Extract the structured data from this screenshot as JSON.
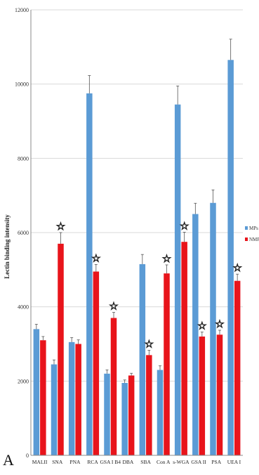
{
  "chart_data": {
    "type": "bar",
    "title": "",
    "xlabel": "",
    "ylabel": "Lectin binding intensity",
    "ylim": [
      0,
      12000
    ],
    "yticks": [
      0,
      2000,
      4000,
      6000,
      8000,
      10000,
      12000
    ],
    "grid": true,
    "legend": "right",
    "panel_label": "A",
    "categories": [
      "MALII",
      "SNA",
      "PNA",
      "RCA",
      "GSA I B4",
      "DBA",
      "SBA",
      "Con A",
      "s-WGA",
      "GSA II",
      "PSA",
      "UEA I"
    ],
    "series": [
      {
        "name": "MPs",
        "color": "#5b9bd5",
        "values": [
          3400,
          2450,
          3050,
          9750,
          2200,
          1950,
          5150,
          2300,
          9450,
          6500,
          6800,
          10650
        ],
        "errors": [
          130,
          120,
          120,
          480,
          100,
          80,
          260,
          110,
          500,
          290,
          350,
          560
        ]
      },
      {
        "name": "NMF",
        "color": "#e8141b",
        "values": [
          3100,
          5700,
          3000,
          4950,
          3700,
          2150,
          2700,
          4900,
          5750,
          3200,
          3250,
          4700
        ],
        "errors": [
          100,
          300,
          110,
          190,
          150,
          60,
          130,
          230,
          260,
          120,
          120,
          180
        ]
      }
    ],
    "significant": [
      false,
      true,
      false,
      true,
      true,
      false,
      true,
      true,
      true,
      true,
      true,
      true
    ],
    "significance_marker": "☆"
  }
}
